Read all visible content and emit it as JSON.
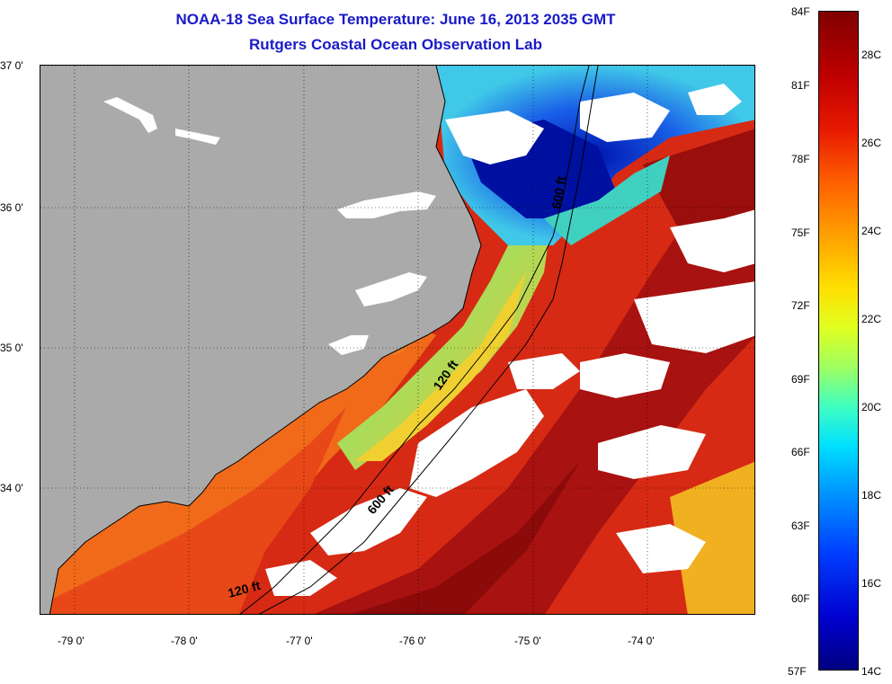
{
  "title": {
    "line1": "NOAA-18 Sea Surface Temperature:  June 16, 2013 2035 GMT",
    "line2": "Rutgers Coastal Ocean Observation Lab"
  },
  "map": {
    "lat_labels": [
      "37 0'",
      "36 0'",
      "35 0'",
      "34 0'"
    ],
    "lon_labels": [
      "-79 0'",
      "-78 0'",
      "-77 0'",
      "-76 0'",
      "-75 0'",
      "-74 0'"
    ],
    "contour_labels": [
      "600 ft",
      "120 ft",
      "600 ft",
      "120 ft"
    ],
    "colors": {
      "land": "#aaaaaa",
      "cloud": "#ffffff",
      "warm_core": "#8b0a0a",
      "warm": "#d62a14",
      "mid_warm": "#f05a14",
      "orange": "#f89020",
      "yellow": "#e8e030",
      "green": "#80e080",
      "cyan": "#40c8e8",
      "blue": "#1040d0",
      "dark_blue": "#0010a0"
    }
  },
  "colorbar": {
    "fahrenheit": [
      "84F",
      "81F",
      "78F",
      "75F",
      "72F",
      "69F",
      "66F",
      "63F",
      "60F",
      "57F"
    ],
    "celsius": [
      "28C",
      "26C",
      "24C",
      "22C",
      "20C",
      "18C",
      "16C",
      "14C"
    ],
    "range_f": [
      57,
      84
    ],
    "range_c": [
      14,
      29
    ]
  }
}
